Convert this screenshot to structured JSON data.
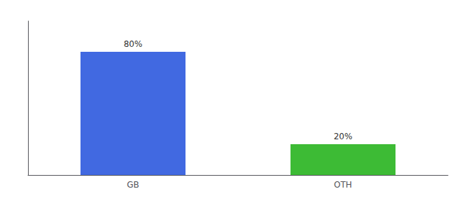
{
  "chart_data": {
    "type": "bar",
    "categories": [
      "GB",
      "OTH"
    ],
    "values": [
      80,
      20
    ],
    "colors": [
      "#4169e1",
      "#3dbb35"
    ],
    "ylim": [
      0,
      100
    ],
    "data_labels": true,
    "value_labels": [
      "80%",
      "20%"
    ],
    "tick_labels": "x",
    "grid": false
  }
}
